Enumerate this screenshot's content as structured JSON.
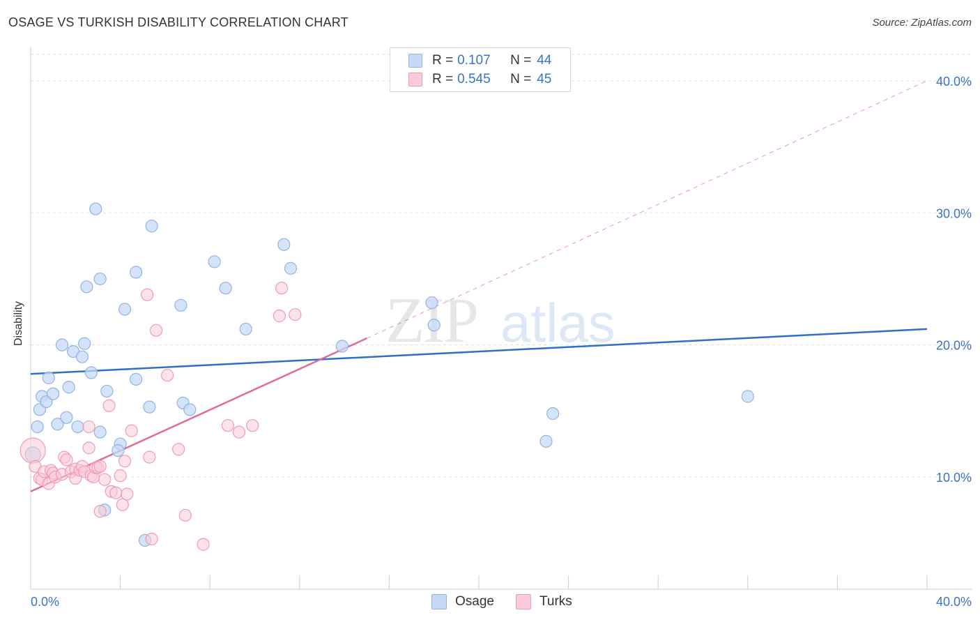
{
  "header": {
    "title": "OSAGE VS TURKISH DISABILITY CORRELATION CHART",
    "source": "Source: ZipAtlas.com"
  },
  "watermark": {
    "part1": "ZIP",
    "part2": "atlas"
  },
  "legend": {
    "osage": {
      "r_label": "R =",
      "r_value": "0.107",
      "n_label": "N =",
      "n_value": "44"
    },
    "turks": {
      "r_label": "R =",
      "r_value": "0.545",
      "n_label": "N =",
      "n_value": "45"
    }
  },
  "bottom_legend": {
    "osage": "Osage",
    "turks": "Turks"
  },
  "colors": {
    "osage_fill": "#c5d9f4",
    "osage_stroke": "#8fb4e6",
    "osage_line": "#2d6fca",
    "turks_fill": "#f9ccd8",
    "turks_stroke": "#ee9cb5",
    "turks_line": "#e26a95",
    "axis_text": "#3a73c5",
    "grid": "#dddddd"
  },
  "chart_data": {
    "type": "scatter",
    "title": "OSAGE VS TURKISH DISABILITY CORRELATION CHART",
    "xlabel": "",
    "ylabel": "Disability",
    "xlim": [
      0,
      40
    ],
    "ylim": [
      1.5,
      42
    ],
    "x_tick_labels": [
      "0.0%",
      "40.0%"
    ],
    "y_ticks": [
      10,
      20,
      30,
      40
    ],
    "y_tick_labels": [
      "10.0%",
      "20.0%",
      "30.0%",
      "40.0%"
    ],
    "grid": true,
    "legend_position": "top-center",
    "series": [
      {
        "name": "Osage",
        "r": 0.107,
        "n": 44,
        "trend": {
          "x": [
            0,
            40
          ],
          "y": [
            17.8,
            21.2
          ],
          "dashed_extension": false
        },
        "points": [
          [
            0.1,
            11.7
          ],
          [
            0.3,
            13.8
          ],
          [
            0.4,
            15.1
          ],
          [
            0.5,
            16.1
          ],
          [
            0.7,
            15.7
          ],
          [
            0.8,
            17.5
          ],
          [
            1.0,
            16.3
          ],
          [
            1.2,
            14.0
          ],
          [
            1.4,
            20.0
          ],
          [
            1.6,
            14.5
          ],
          [
            1.7,
            16.8
          ],
          [
            1.9,
            19.5
          ],
          [
            2.1,
            13.8
          ],
          [
            2.3,
            19.1
          ],
          [
            2.4,
            20.1
          ],
          [
            2.5,
            24.4
          ],
          [
            2.7,
            17.9
          ],
          [
            2.9,
            30.3
          ],
          [
            3.1,
            13.4
          ],
          [
            3.1,
            25.0
          ],
          [
            3.4,
            16.5
          ],
          [
            3.3,
            7.5
          ],
          [
            4.0,
            12.5
          ],
          [
            3.9,
            12.0
          ],
          [
            4.2,
            22.7
          ],
          [
            4.7,
            25.5
          ],
          [
            4.7,
            17.4
          ],
          [
            5.1,
            5.2
          ],
          [
            5.3,
            15.3
          ],
          [
            5.4,
            29.0
          ],
          [
            6.7,
            23.0
          ],
          [
            6.8,
            15.6
          ],
          [
            7.1,
            15.1
          ],
          [
            8.2,
            26.3
          ],
          [
            8.7,
            24.3
          ],
          [
            9.6,
            21.2
          ],
          [
            11.3,
            27.6
          ],
          [
            11.6,
            25.8
          ],
          [
            13.9,
            19.9
          ],
          [
            17.9,
            23.2
          ],
          [
            18.0,
            21.5
          ],
          [
            23.0,
            12.7
          ],
          [
            23.3,
            14.8
          ],
          [
            32.0,
            16.1
          ]
        ]
      },
      {
        "name": "Turks",
        "r": 0.545,
        "n": 45,
        "trend": {
          "x": [
            0,
            15
          ],
          "y": [
            8.9,
            20.5
          ],
          "dashed_extension": {
            "x": [
              15,
              40
            ],
            "y": [
              20.5,
              40.0
            ]
          }
        },
        "points": [
          [
            0.1,
            12.0
          ],
          [
            0.2,
            10.8
          ],
          [
            0.4,
            9.9
          ],
          [
            0.5,
            9.8
          ],
          [
            0.6,
            10.4
          ],
          [
            0.8,
            9.5
          ],
          [
            0.9,
            10.5
          ],
          [
            1.0,
            10.3
          ],
          [
            1.1,
            10.0
          ],
          [
            1.4,
            10.2
          ],
          [
            1.5,
            11.5
          ],
          [
            1.6,
            11.3
          ],
          [
            1.8,
            10.4
          ],
          [
            2.0,
            10.6
          ],
          [
            2.0,
            9.9
          ],
          [
            2.2,
            10.5
          ],
          [
            2.3,
            10.8
          ],
          [
            2.4,
            10.4
          ],
          [
            2.6,
            12.2
          ],
          [
            2.6,
            13.8
          ],
          [
            2.7,
            10.1
          ],
          [
            2.8,
            10.0
          ],
          [
            2.9,
            10.7
          ],
          [
            3.0,
            10.7
          ],
          [
            3.1,
            10.8
          ],
          [
            3.1,
            7.4
          ],
          [
            3.3,
            9.8
          ],
          [
            3.5,
            15.4
          ],
          [
            3.6,
            8.9
          ],
          [
            3.8,
            8.8
          ],
          [
            4.0,
            10.1
          ],
          [
            4.2,
            11.2
          ],
          [
            4.1,
            7.9
          ],
          [
            4.3,
            8.7
          ],
          [
            4.5,
            13.5
          ],
          [
            5.2,
            23.8
          ],
          [
            5.3,
            11.5
          ],
          [
            5.4,
            5.3
          ],
          [
            5.6,
            21.1
          ],
          [
            6.1,
            17.7
          ],
          [
            6.6,
            12.1
          ],
          [
            6.9,
            7.1
          ],
          [
            7.7,
            4.9
          ],
          [
            8.8,
            13.9
          ],
          [
            9.3,
            13.4
          ]
        ],
        "extra_points": [
          [
            9.9,
            13.9
          ],
          [
            11.1,
            22.2
          ],
          [
            11.2,
            24.3
          ],
          [
            11.8,
            22.3
          ]
        ]
      }
    ]
  }
}
